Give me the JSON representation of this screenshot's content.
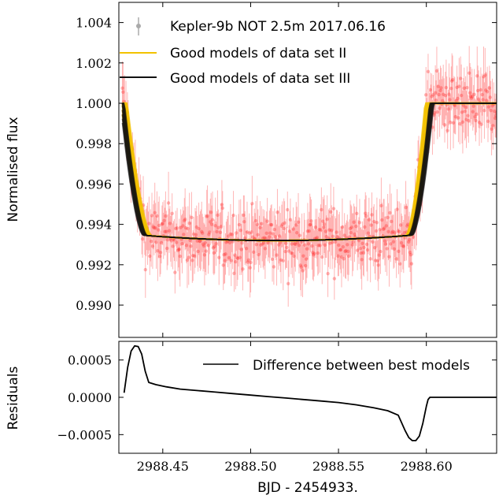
{
  "chart_data": [
    {
      "type": "scatter",
      "ylabel": "Normalised flux",
      "xlim": [
        2988.425,
        2988.64
      ],
      "ylim": [
        0.9884,
        1.005
      ],
      "yticks": [
        "0.990",
        "0.992",
        "0.994",
        "0.996",
        "0.998",
        "1.000",
        "1.002",
        "1.004"
      ],
      "ytick_values": [
        0.99,
        0.992,
        0.994,
        0.996,
        0.998,
        1.0,
        1.002,
        1.004
      ],
      "legend_position": "top-left",
      "series": [
        {
          "name": "Kepler-9b NOT 2.5m 2017.06.16",
          "kind": "errorbar-points",
          "color": "#ff2a2a",
          "legend_color": "#aaaaaa",
          "x_range": [
            2988.427,
            2988.64
          ],
          "typical_error": 0.0012
        },
        {
          "name": "Good models of data set II",
          "kind": "model-lines",
          "color": "#f2c200",
          "transit_start": 2988.428,
          "transit_end": 2988.601,
          "ingress_end": 2988.442,
          "egress_start": 2988.59,
          "baseline": 1.0,
          "depth_min": 0.9932,
          "min_at": 2988.515
        },
        {
          "name": "Good models of data set III",
          "kind": "model-lines",
          "color": "#111111",
          "transit_start": 2988.427,
          "transit_end": 2988.603,
          "ingress_end": 2988.44,
          "egress_start": 2988.591,
          "baseline": 1.0,
          "depth_min": 0.9932,
          "min_at": 2988.515
        }
      ]
    },
    {
      "type": "line",
      "xlabel": "BJD - 2454933.",
      "ylabel": "Residuals",
      "xlim": [
        2988.425,
        2988.64
      ],
      "ylim": [
        -0.00075,
        0.00075
      ],
      "xticks": [
        "2988.45",
        "2988.50",
        "2988.55",
        "2988.60"
      ],
      "xtick_values": [
        2988.45,
        2988.5,
        2988.55,
        2988.6
      ],
      "yticks": [
        "−0.0005",
        "0.0000",
        "0.0005"
      ],
      "ytick_values": [
        -0.0005,
        0.0,
        0.0005
      ],
      "legend_position": "top-right",
      "series": [
        {
          "name": "Difference between best models",
          "color": "#000000",
          "x": [
            2988.428,
            2988.43,
            2988.432,
            2988.434,
            2988.436,
            2988.438,
            2988.44,
            2988.442,
            2988.446,
            2988.452,
            2988.46,
            2988.47,
            2988.48,
            2988.49,
            2988.5,
            2988.51,
            2988.52,
            2988.53,
            2988.54,
            2988.55,
            2988.56,
            2988.57,
            2988.578,
            2988.584,
            2988.588,
            2988.59,
            2988.592,
            2988.594,
            2988.596,
            2988.598,
            2988.6,
            2988.601,
            2988.602,
            2988.61,
            2988.62,
            2988.63,
            2988.64
          ],
          "y": [
            6e-05,
            0.0004,
            0.00062,
            0.00069,
            0.00068,
            0.00058,
            0.00035,
            0.0002,
            0.00017,
            0.00014,
            0.00011,
            9e-05,
            7e-05,
            5e-05,
            3e-05,
            1e-05,
            -1e-05,
            -3e-05,
            -5e-05,
            -7e-05,
            -0.0001,
            -0.00014,
            -0.00018,
            -0.00024,
            -0.00045,
            -0.00054,
            -0.00058,
            -0.00058,
            -0.00052,
            -0.00035,
            -0.00012,
            -3e-05,
            0.0,
            0.0,
            0.0,
            0.0,
            0.0
          ]
        }
      ]
    }
  ]
}
